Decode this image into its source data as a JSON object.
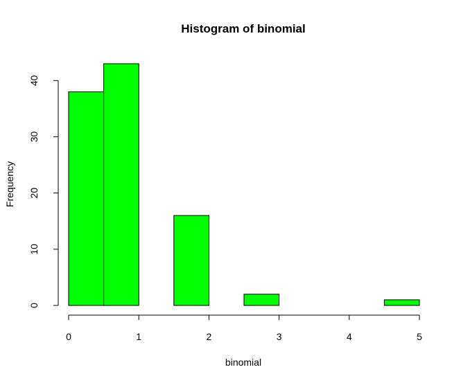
{
  "chart_data": {
    "type": "bar",
    "title": "Histogram of binomial",
    "xlabel": "binomial",
    "ylabel": "Frequency",
    "bins": [
      {
        "x0": 0.0,
        "x1": 0.5,
        "count": 38
      },
      {
        "x0": 0.5,
        "x1": 1.0,
        "count": 43
      },
      {
        "x0": 1.0,
        "x1": 1.5,
        "count": 0
      },
      {
        "x0": 1.5,
        "x1": 2.0,
        "count": 16
      },
      {
        "x0": 2.0,
        "x1": 2.5,
        "count": 0
      },
      {
        "x0": 2.5,
        "x1": 3.0,
        "count": 2
      },
      {
        "x0": 3.0,
        "x1": 3.5,
        "count": 0
      },
      {
        "x0": 3.5,
        "x1": 4.0,
        "count": 0
      },
      {
        "x0": 4.0,
        "x1": 4.5,
        "count": 0
      },
      {
        "x0": 4.5,
        "x1": 5.0,
        "count": 1
      }
    ],
    "xlim": [
      0,
      5
    ],
    "ylim": [
      0,
      43
    ],
    "xticks": [
      0,
      1,
      2,
      3,
      4,
      5
    ],
    "yticks": [
      0,
      10,
      20,
      30,
      40
    ],
    "bar_color": "#00ff00",
    "edge_color": "#000000",
    "grid": false
  }
}
